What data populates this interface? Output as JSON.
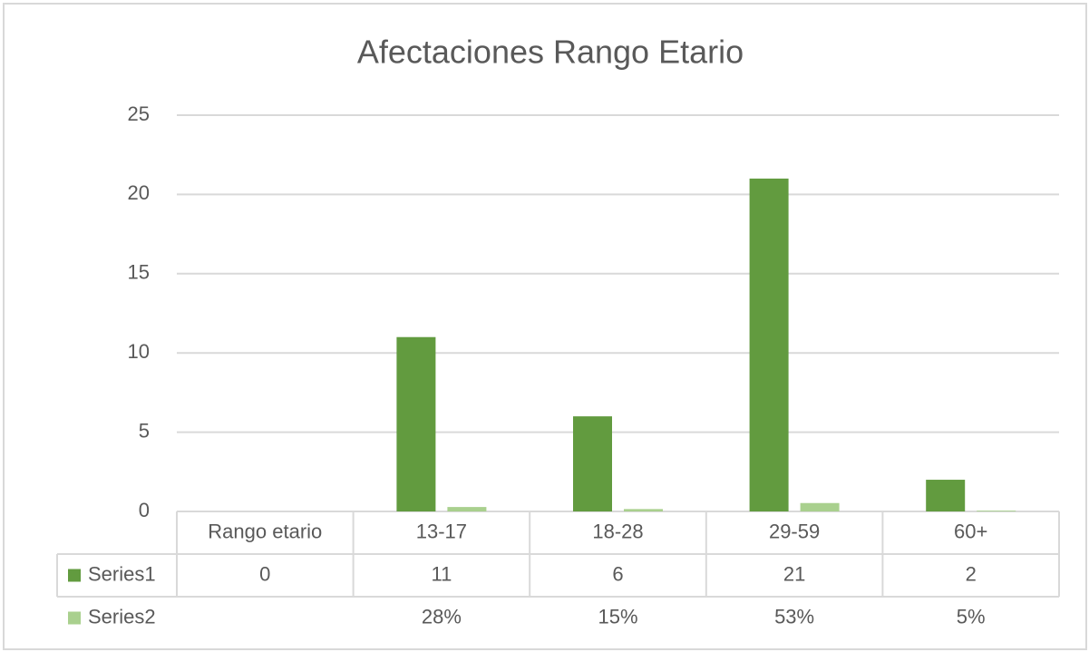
{
  "chart_data": {
    "type": "bar",
    "title": "Afectaciones Rango Etario",
    "categories": [
      "Rango etario",
      "13-17",
      "18-28",
      "29-59",
      "60+"
    ],
    "series": [
      {
        "name": "Series1",
        "color": "#629b3f",
        "values": [
          0,
          11,
          6,
          21,
          2
        ]
      },
      {
        "name": "Series2",
        "color": "#a9d08e",
        "values": [
          null,
          0.28,
          0.15,
          0.53,
          0.05
        ],
        "value_labels": [
          null,
          "28%",
          "15%",
          "53%",
          "5%"
        ]
      }
    ],
    "ylim": [
      0,
      25
    ],
    "yticks": [
      0,
      5,
      10,
      15,
      20,
      25
    ],
    "grid": true,
    "data_table": true
  }
}
